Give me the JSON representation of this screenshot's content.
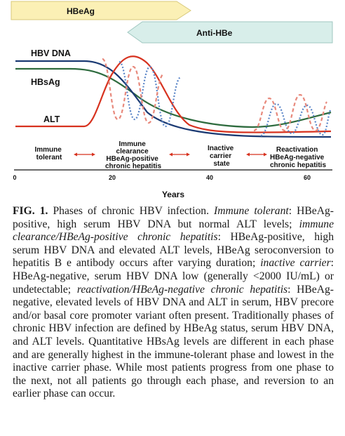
{
  "figure": {
    "arrows": {
      "hbeag": "HBeAg",
      "anti_hbe": "Anti-HBe"
    },
    "arrow_colors": {
      "hbeag": "#fbf0b5",
      "anti_hbe": "#d8eeea"
    },
    "curve_labels": {
      "hbv_dna": "HBV DNA",
      "hbsag": "HBsAg",
      "alt": "ALT"
    },
    "curve_colors": {
      "hbv_dna": "#1b3a73",
      "hbsag": "#2e6b3e",
      "alt": "#d7321f",
      "oscillation_blue": "#5b86c8",
      "oscillation_red": "#e8897c"
    },
    "phases": [
      {
        "lines": [
          "Immune",
          "tolerant"
        ]
      },
      {
        "lines": [
          "Immune",
          "clearance",
          "HBeAg-positive",
          "chronic hepatitis"
        ]
      },
      {
        "lines": [
          "Inactive",
          "carrier",
          "state"
        ]
      },
      {
        "lines": [
          "Reactivation",
          "HBeAg-negative",
          "chronic hepatitis"
        ]
      }
    ],
    "x_ticks": [
      "0",
      "20",
      "40",
      "60"
    ],
    "x_axis_label": "Years"
  },
  "caption": {
    "label": "FIG. 1.",
    "parts": [
      {
        "t": " Phases of chronic HBV infection. "
      },
      {
        "t": "Immune tolerant",
        "i": true
      },
      {
        "t": ": HBeAg-positive, high serum HBV DNA but normal ALT levels; "
      },
      {
        "t": "immune clearance/HBeAg-positive chronic hepatitis",
        "i": true
      },
      {
        "t": ": HBeAg-positive, high serum HBV DNA and elevated ALT levels, HBeAg seroconversion to hepatitis B e antibody occurs after varying duration; "
      },
      {
        "t": "inactive carrier",
        "i": true
      },
      {
        "t": ": HBeAg-negative, serum HBV DNA low (generally <2000 IU/mL) or undetectable; "
      },
      {
        "t": "reactivation/HBeAg-negative chronic hepatitis",
        "i": true
      },
      {
        "t": ": HBeAg-negative, elevated levels of HBV DNA and ALT in serum, HBV precore and/or basal core promoter variant often present. Traditionally phases of chronic HBV infection are defined by HBeAg status, serum HBV DNA, and ALT levels. Quantitative HBsAg levels are different in each phase and are generally highest in the immune-tolerant phase and lowest in the inactive carrier phase. While most patients progress from one phase to the next, not all patients go through each phase, and reversion to an earlier phase can occur."
      }
    ]
  }
}
